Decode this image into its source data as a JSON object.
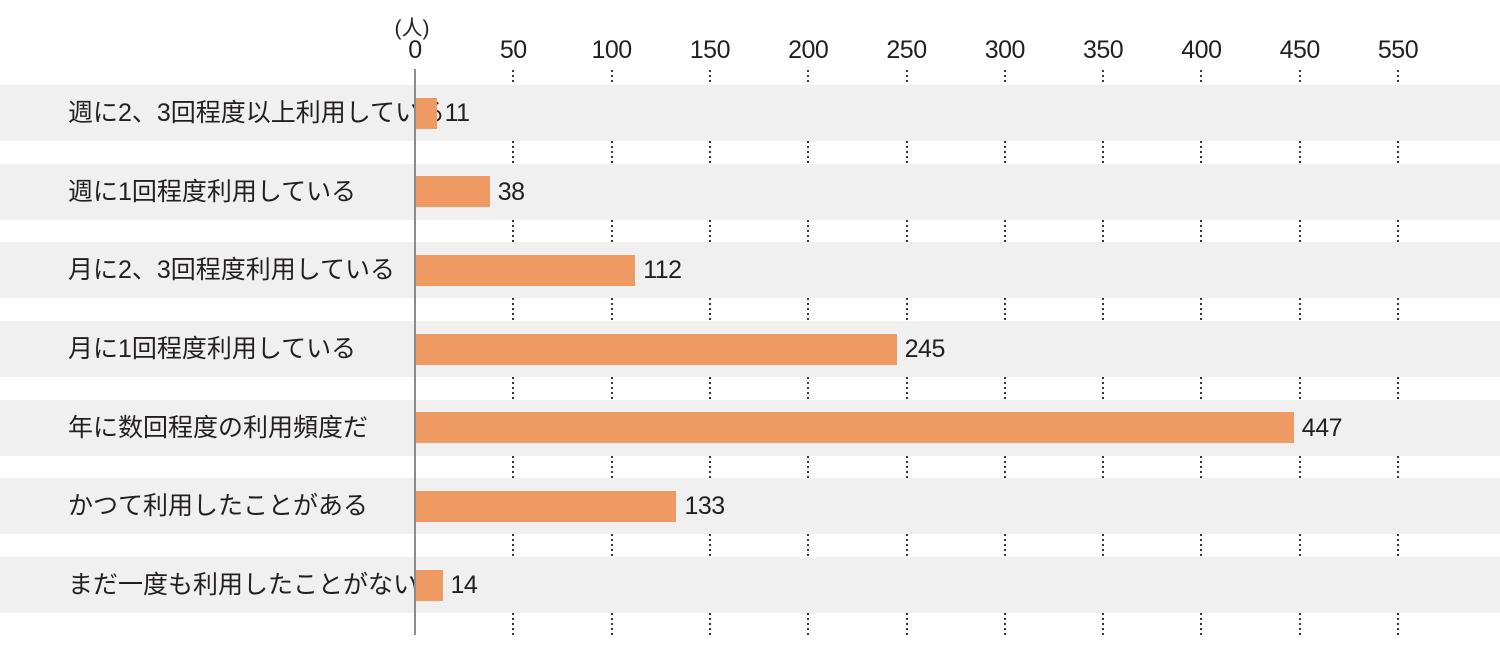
{
  "unit_label": "(人)",
  "colors": {
    "bar": "#ef9a62",
    "row_band": "#f0f0f0",
    "axis_line": "#8e8b8b",
    "grid_dot": "#3c3838",
    "text": "#231f20"
  },
  "chart_data": {
    "type": "bar",
    "orientation": "horizontal",
    "title": "",
    "unit": "(人)",
    "categories": [
      "週に2、3回程度以上利用している",
      "週に1回程度利用している",
      "月に2、3回程度利用している",
      "月に1回程度利用している",
      "年に数回程度の利用頻度だ",
      "かつて利用したことがある",
      "まだ一度も利用したことがない"
    ],
    "values": [
      11,
      38,
      112,
      245,
      447,
      133,
      14
    ],
    "value_labels": [
      "11",
      "38",
      "112",
      "245",
      "447",
      "133",
      "14"
    ],
    "x_tick_labels": [
      "0",
      "50",
      "100",
      "150",
      "200",
      "250",
      "300",
      "350",
      "400",
      "450",
      "550"
    ],
    "x_tick_interval_units": 50,
    "xlim": [
      0,
      550
    ],
    "grid": "dotted-vertical-in-row-gaps",
    "legend": "none",
    "value_labels_shown": true,
    "row_bands_shown": true
  }
}
